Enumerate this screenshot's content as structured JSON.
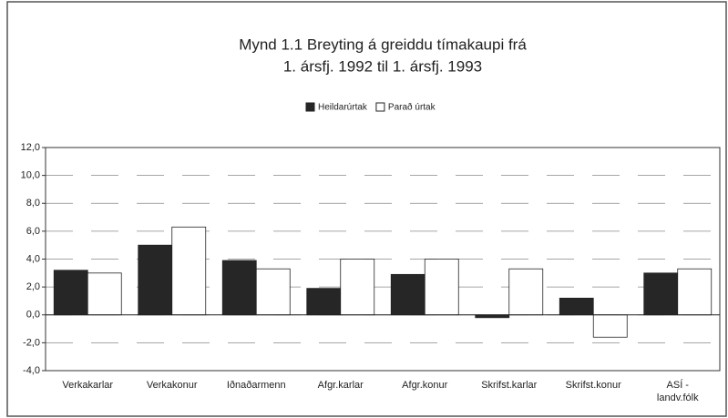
{
  "chart_data": {
    "type": "bar",
    "title": "Mynd 1.1   Breyting á greiddu tímakaupi frá",
    "subtitle": "1. ársfj. 1992 til 1. ársfj. 1993",
    "categories": [
      "Verkakarlar",
      "Verkakonur",
      "Iðnaðarmenn",
      "Afgr.karlar",
      "Afgr.konur",
      "Skrifst.karlar",
      "Skrifst.konur",
      "ASÍ - landv.fólk"
    ],
    "series": [
      {
        "name": "Heildarúrtak",
        "color": "#262626",
        "values": [
          3.2,
          5.0,
          3.9,
          1.9,
          2.9,
          -0.2,
          1.2,
          3.0
        ]
      },
      {
        "name": "Parað úrtak",
        "color": "#ffffff",
        "values": [
          3.0,
          6.3,
          3.3,
          4.0,
          4.0,
          3.3,
          -1.6,
          3.3
        ]
      }
    ],
    "ylim": [
      -4,
      12
    ],
    "yticks": [
      {
        "value": -4,
        "label": "-4,0"
      },
      {
        "value": -2,
        "label": "-2,0"
      },
      {
        "value": 0,
        "label": "0,0"
      },
      {
        "value": 2,
        "label": "2,0"
      },
      {
        "value": 4,
        "label": "4,0"
      },
      {
        "value": 6,
        "label": "6,0"
      },
      {
        "value": 8,
        "label": "8,0"
      },
      {
        "value": 10,
        "label": "10,0"
      },
      {
        "value": 12,
        "label": "12,0"
      }
    ],
    "grid": true,
    "legend": "top"
  }
}
